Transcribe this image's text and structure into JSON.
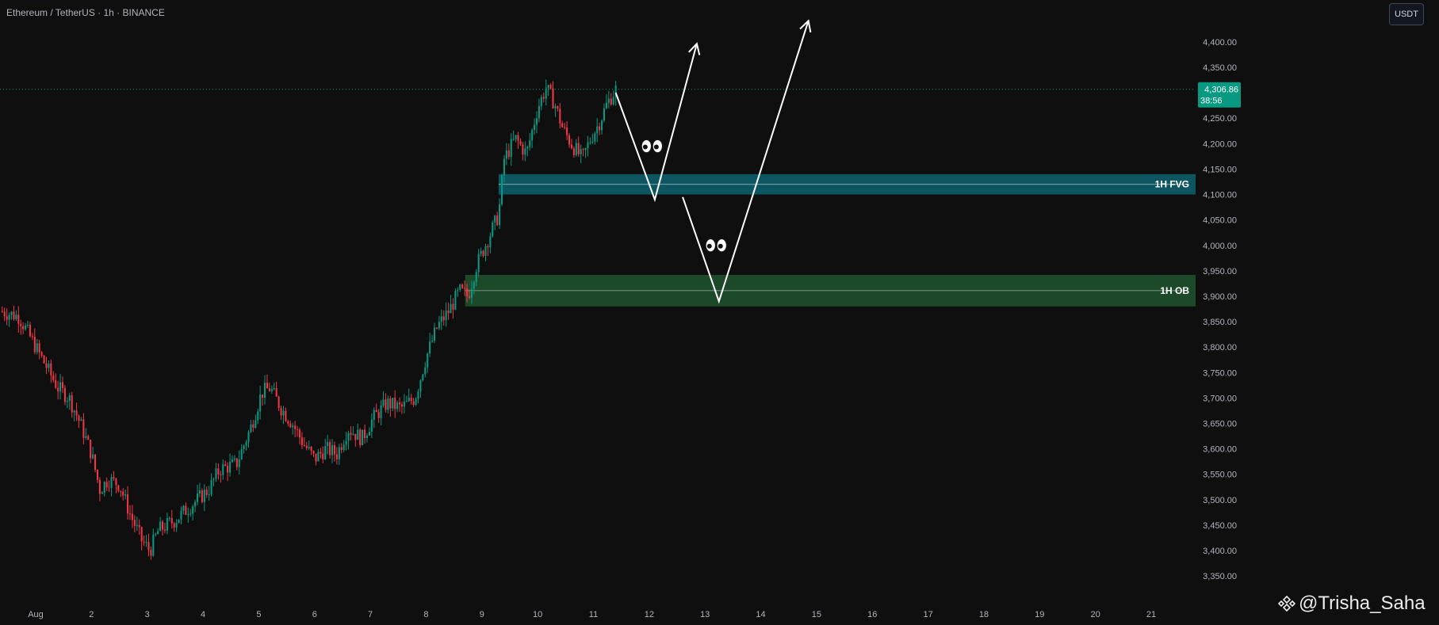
{
  "header": {
    "symbol_title": "Ethereum / TetherUS · 1h · BINANCE",
    "currency_label": "USDT"
  },
  "price_tag": {
    "price": "4,306.86",
    "countdown": "38:56",
    "color": "#089981"
  },
  "watermark": {
    "handle": "@Trisha_Saha"
  },
  "colors": {
    "up": "#089981",
    "down": "#f23645",
    "fvg_zone": "#0e5a66",
    "ob_zone": "#1e4d2b",
    "arrow": "#ffffff",
    "axis_text": "#b2b5be",
    "background": "#0f0f0f"
  },
  "chart_data": {
    "type": "candlestick",
    "title": "",
    "xlabel": "",
    "ylabel": "",
    "yaxis_labels": [
      "4,400.00",
      "4,350.00",
      "4,300.00",
      "4,250.00",
      "4,200.00",
      "4,150.00",
      "4,100.00",
      "4,050.00",
      "4,000.00",
      "3,950.00",
      "3,900.00",
      "3,850.00",
      "3,800.00",
      "3,750.00",
      "3,700.00",
      "3,650.00",
      "3,600.00",
      "3,550.00",
      "3,500.00",
      "3,450.00",
      "3,400.00",
      "3,350.00"
    ],
    "yaxis_values": [
      4400,
      4350,
      4300,
      4250,
      4200,
      4150,
      4100,
      4050,
      4000,
      3950,
      3900,
      3850,
      3800,
      3750,
      3700,
      3650,
      3600,
      3550,
      3500,
      3450,
      3400,
      3350
    ],
    "ylim": [
      3330,
      4445
    ],
    "xaxis_labels": [
      "Aug",
      "2",
      "3",
      "4",
      "5",
      "6",
      "7",
      "8",
      "9",
      "10",
      "11",
      "12",
      "13",
      "14",
      "15",
      "16",
      "17",
      "18",
      "19",
      "20",
      "21"
    ],
    "xaxis_days": [
      1,
      2,
      3,
      4,
      5,
      6,
      7,
      8,
      9,
      10,
      11,
      12,
      13,
      14,
      15,
      16,
      17,
      18,
      19,
      20,
      21
    ],
    "xlim_days": [
      0.4,
      22.1
    ],
    "last_price": 4306.86,
    "price_path": [
      [
        0.4,
        3870
      ],
      [
        0.7,
        3860
      ],
      [
        0.95,
        3810
      ],
      [
        1.2,
        3760
      ],
      [
        1.4,
        3720
      ],
      [
        1.6,
        3700
      ],
      [
        1.8,
        3650
      ],
      [
        2.0,
        3590
      ],
      [
        2.15,
        3520
      ],
      [
        2.3,
        3540
      ],
      [
        2.5,
        3530
      ],
      [
        2.7,
        3470
      ],
      [
        2.9,
        3420
      ],
      [
        3.05,
        3400
      ],
      [
        3.2,
        3440
      ],
      [
        3.5,
        3460
      ],
      [
        3.8,
        3490
      ],
      [
        4.1,
        3520
      ],
      [
        4.3,
        3560
      ],
      [
        4.6,
        3570
      ],
      [
        4.85,
        3640
      ],
      [
        5.05,
        3710
      ],
      [
        5.2,
        3720
      ],
      [
        5.4,
        3680
      ],
      [
        5.6,
        3650
      ],
      [
        5.8,
        3610
      ],
      [
        6.0,
        3580
      ],
      [
        6.2,
        3600
      ],
      [
        6.4,
        3590
      ],
      [
        6.6,
        3640
      ],
      [
        6.85,
        3620
      ],
      [
        7.05,
        3660
      ],
      [
        7.3,
        3690
      ],
      [
        7.55,
        3680
      ],
      [
        7.8,
        3700
      ],
      [
        8.0,
        3780
      ],
      [
        8.2,
        3840
      ],
      [
        8.4,
        3870
      ],
      [
        8.6,
        3910
      ],
      [
        8.75,
        3900
      ],
      [
        8.9,
        3960
      ],
      [
        9.1,
        4010
      ],
      [
        9.3,
        4060
      ],
      [
        9.4,
        4170
      ],
      [
        9.6,
        4210
      ],
      [
        9.8,
        4180
      ],
      [
        10.0,
        4270
      ],
      [
        10.15,
        4310
      ],
      [
        10.3,
        4280
      ],
      [
        10.45,
        4230
      ],
      [
        10.6,
        4200
      ],
      [
        10.8,
        4170
      ],
      [
        10.95,
        4210
      ],
      [
        11.1,
        4240
      ],
      [
        11.25,
        4280
      ],
      [
        11.4,
        4307
      ]
    ],
    "zones": [
      {
        "label": "1H FVG",
        "from": 4100,
        "to": 4140,
        "mid": 4120,
        "start_day": 9.3
      },
      {
        "label": "1H OB",
        "from": 3880,
        "to": 3942,
        "mid": 3911,
        "start_day": 8.7
      }
    ],
    "projection_path_1": [
      [
        11.4,
        4300
      ],
      [
        12.1,
        4090
      ],
      [
        12.85,
        4395
      ]
    ],
    "projection_path_2": [
      [
        12.6,
        4095
      ],
      [
        13.25,
        3890
      ],
      [
        14.85,
        4440
      ]
    ],
    "markers": [
      {
        "type": "eyes",
        "day": 12.05,
        "price": 4195
      },
      {
        "type": "eyes",
        "day": 13.2,
        "price": 4000
      }
    ]
  }
}
